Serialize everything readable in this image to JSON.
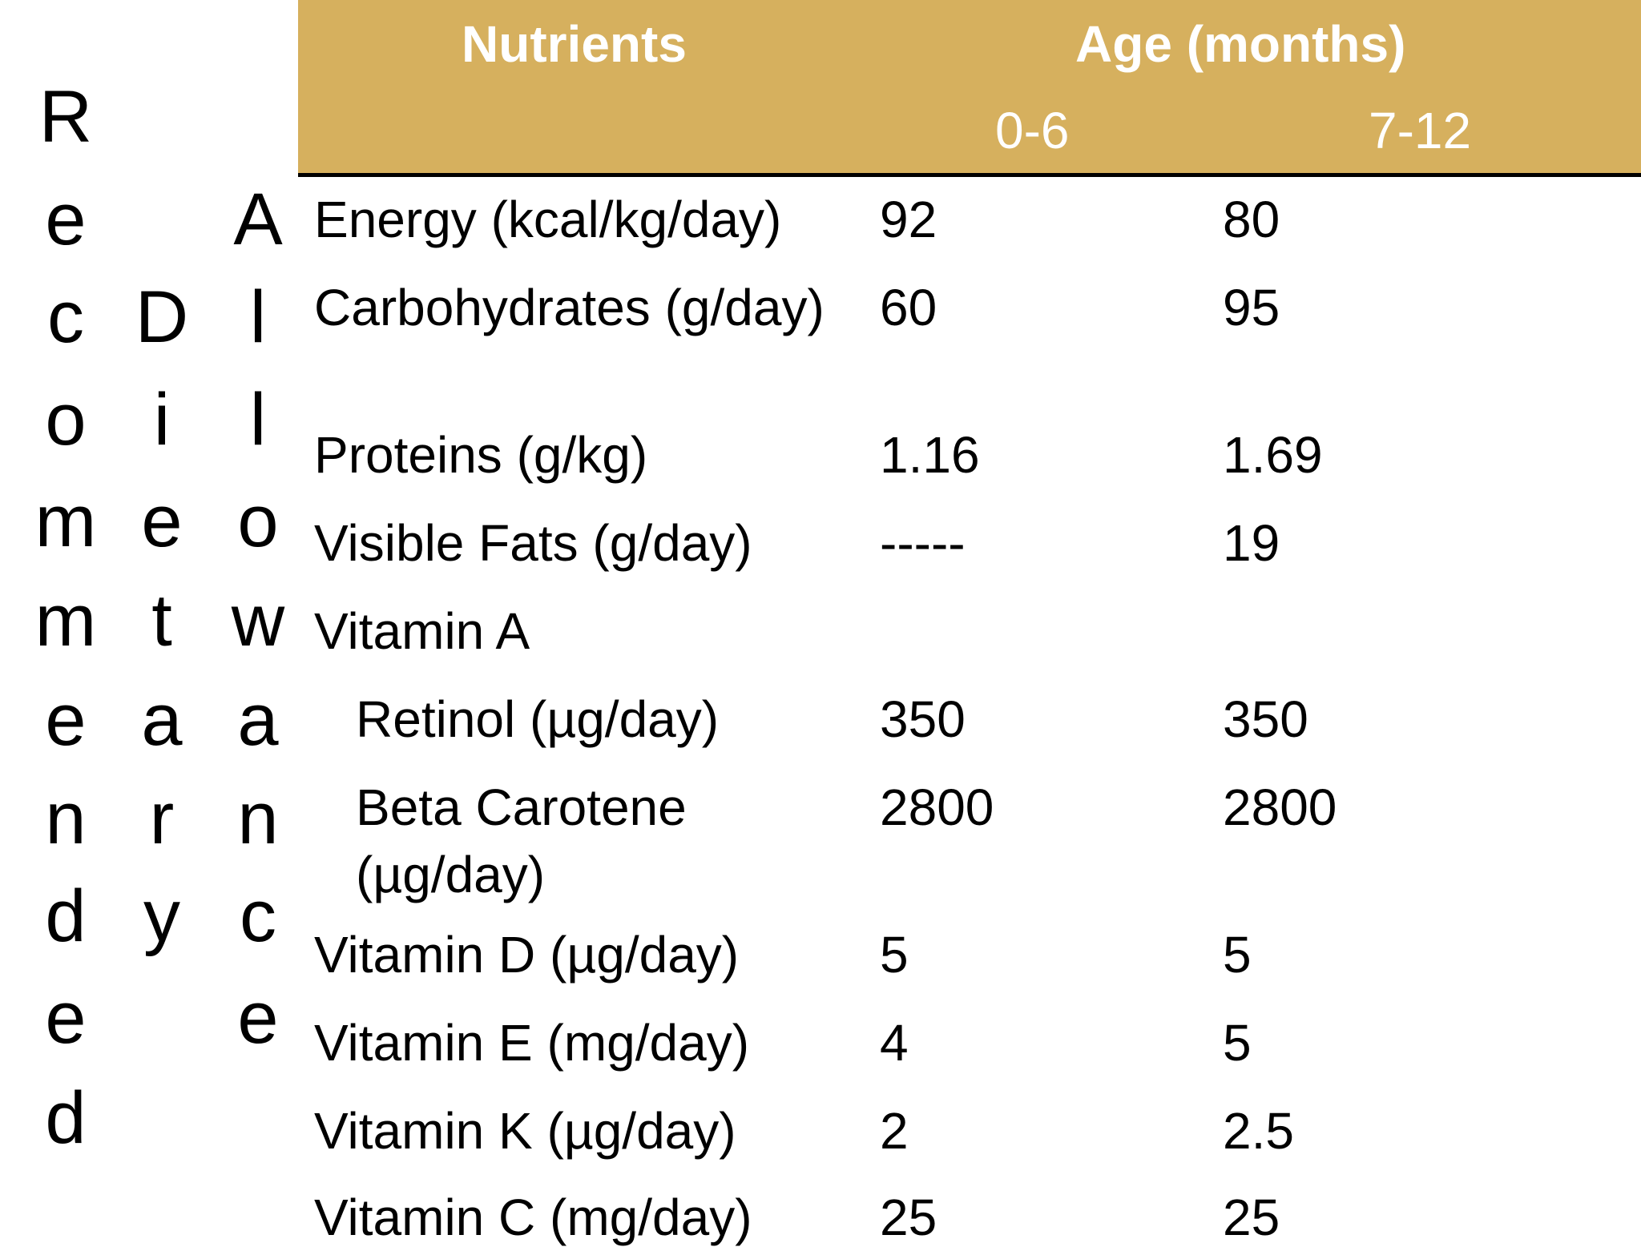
{
  "side_title": {
    "word1": [
      "R",
      "e",
      "c",
      "o",
      "m",
      "m",
      "e",
      "n",
      "d",
      "e",
      "d"
    ],
    "word2": [
      "D",
      "i",
      "e",
      "t",
      "a",
      "r",
      "y"
    ],
    "word3": [
      "A",
      "l",
      "l",
      "o",
      "w",
      "a",
      "n",
      "c",
      "e"
    ]
  },
  "table": {
    "header": {
      "nutrients": "Nutrients",
      "age": "Age (months)",
      "col1": "0-6",
      "col2": "7-12"
    },
    "rows": [
      {
        "name": "Energy (kcal/kg/day)",
        "v1": "92",
        "v2": "80"
      },
      {
        "name": "Carbohydrates (g/day)",
        "v1": "60",
        "v2": "95"
      },
      {
        "name": "Proteins (g/kg)",
        "v1": "1.16",
        "v2": "1.69"
      },
      {
        "name": "Visible Fats (g/day)",
        "v1": "-----",
        "v2": "19"
      },
      {
        "name": "Vitamin A",
        "v1": "",
        "v2": ""
      },
      {
        "name": "Retinol (µg/day)",
        "v1": "350",
        "v2": "350"
      },
      {
        "name": "Beta Carotene (µg/day)",
        "v1": "2800",
        "v2": "2800"
      },
      {
        "name": "Vitamin D (µg/day)",
        "v1": "5",
        "v2": "5"
      },
      {
        "name": "Vitamin E (mg/day)",
        "v1": "4",
        "v2": "5"
      },
      {
        "name": "Vitamin K (µg/day)",
        "v1": "2",
        "v2": "2.5"
      },
      {
        "name": "Vitamin C (mg/day)",
        "v1": "25",
        "v2": "25"
      }
    ]
  }
}
